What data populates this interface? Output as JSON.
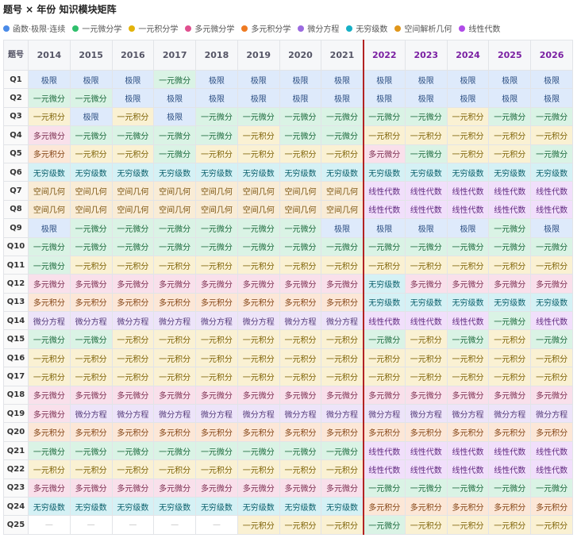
{
  "title": "题号 × 年份 知识模块矩阵",
  "legend": [
    {
      "label": "函数·极限·连续",
      "color": "#4a8be8"
    },
    {
      "label": "一元微分学",
      "color": "#2fbf6c"
    },
    {
      "label": "一元积分学",
      "color": "#e3b30a"
    },
    {
      "label": "多元微分学",
      "color": "#e0508f"
    },
    {
      "label": "多元积分学",
      "color": "#ee7a22"
    },
    {
      "label": "微分方程",
      "color": "#9b6be0"
    },
    {
      "label": "无穷级数",
      "color": "#16b0c6"
    },
    {
      "label": "空间解析几何",
      "color": "#e0961a"
    },
    {
      "label": "线性代数",
      "color": "#b04be8"
    }
  ],
  "table": {
    "corner": "题号",
    "past_years": [
      2014,
      2015,
      2016,
      2017,
      2018,
      2019,
      2020,
      2021
    ],
    "future_years": [
      2022,
      2023,
      2024,
      2025,
      2026
    ],
    "rows": [
      {
        "label": "Q1",
        "past": [
          "极限",
          "极限",
          "极限",
          "一元微分",
          "极限",
          "极限",
          "极限",
          "极限"
        ],
        "future": [
          "极限",
          "极限",
          "极限",
          "极限",
          "极限"
        ]
      },
      {
        "label": "Q2",
        "past": [
          "一元微分",
          "一元微分",
          "极限",
          "极限",
          "极限",
          "极限",
          "极限",
          "极限"
        ],
        "future": [
          "极限",
          "极限",
          "极限",
          "极限",
          "极限"
        ]
      },
      {
        "label": "Q3",
        "past": [
          "一元积分",
          "极限",
          "一元积分",
          "极限",
          "一元微分",
          "一元微分",
          "一元微分",
          "一元微分"
        ],
        "future": [
          "一元微分",
          "一元微分",
          "一元积分",
          "一元微分",
          "一元微分"
        ]
      },
      {
        "label": "Q4",
        "past": [
          "多元微分",
          "一元微分",
          "一元微分",
          "一元微分",
          "一元微分",
          "一元积分",
          "一元微分",
          "一元微分"
        ],
        "future": [
          "一元积分",
          "一元积分",
          "一元积分",
          "一元积分",
          "一元积分"
        ]
      },
      {
        "label": "Q5",
        "past": [
          "多元积分",
          "一元积分",
          "一元积分",
          "一元微分",
          "一元积分",
          "一元积分",
          "一元积分",
          "一元积分"
        ],
        "future": [
          "多元微分",
          "一元微分",
          "一元积分",
          "一元积分",
          "一元微分"
        ]
      },
      {
        "label": "Q6",
        "past": [
          "无穷级数",
          "无穷级数",
          "无穷级数",
          "无穷级数",
          "无穷级数",
          "无穷级数",
          "无穷级数",
          "无穷级数"
        ],
        "future": [
          "无穷级数",
          "无穷级数",
          "无穷级数",
          "无穷级数",
          "无穷级数"
        ]
      },
      {
        "label": "Q7",
        "past": [
          "空间几何",
          "空间几何",
          "空间几何",
          "空间几何",
          "空间几何",
          "空间几何",
          "空间几何",
          "空间几何"
        ],
        "future": [
          "线性代数",
          "线性代数",
          "线性代数",
          "线性代数",
          "线性代数"
        ]
      },
      {
        "label": "Q8",
        "past": [
          "空间几何",
          "空间几何",
          "空间几何",
          "空间几何",
          "空间几何",
          "空间几何",
          "空间几何",
          "空间几何"
        ],
        "future": [
          "线性代数",
          "线性代数",
          "线性代数",
          "线性代数",
          "线性代数"
        ]
      },
      {
        "label": "Q9",
        "past": [
          "极限",
          "一元微分",
          "一元微分",
          "一元微分",
          "一元微分",
          "一元微分",
          "一元微分",
          "极限"
        ],
        "future": [
          "极限",
          "极限",
          "极限",
          "一元微分",
          "极限"
        ]
      },
      {
        "label": "Q10",
        "past": [
          "一元微分",
          "一元微分",
          "一元微分",
          "一元微分",
          "一元微分",
          "一元微分",
          "一元微分",
          "一元微分"
        ],
        "future": [
          "一元微分",
          "一元微分",
          "一元微分",
          "一元微分",
          "一元微分"
        ]
      },
      {
        "label": "Q11",
        "past": [
          "一元微分",
          "一元积分",
          "一元积分",
          "一元积分",
          "一元积分",
          "一元积分",
          "一元积分",
          "一元积分"
        ],
        "future": [
          "一元积分",
          "一元积分",
          "一元积分",
          "一元积分",
          "一元积分"
        ]
      },
      {
        "label": "Q12",
        "past": [
          "多元微分",
          "多元微分",
          "多元微分",
          "多元微分",
          "多元微分",
          "多元微分",
          "多元微分",
          "多元微分"
        ],
        "future": [
          "无穷级数",
          "多元微分",
          "多元微分",
          "多元微分",
          "多元微分"
        ]
      },
      {
        "label": "Q13",
        "past": [
          "多元积分",
          "多元积分",
          "多元积分",
          "多元积分",
          "多元积分",
          "多元积分",
          "多元积分",
          "多元积分"
        ],
        "future": [
          "无穷级数",
          "无穷级数",
          "无穷级数",
          "无穷级数",
          "无穷级数"
        ]
      },
      {
        "label": "Q14",
        "past": [
          "微分方程",
          "微分方程",
          "微分方程",
          "微分方程",
          "微分方程",
          "微分方程",
          "微分方程",
          "微分方程"
        ],
        "future": [
          "线性代数",
          "线性代数",
          "线性代数",
          "一元微分",
          "线性代数"
        ]
      },
      {
        "label": "Q15",
        "past": [
          "一元微分",
          "一元微分",
          "一元积分",
          "一元积分",
          "一元积分",
          "一元积分",
          "一元积分",
          "一元积分"
        ],
        "future": [
          "一元微分",
          "一元积分",
          "一元微分",
          "一元积分",
          "一元微分"
        ]
      },
      {
        "label": "Q16",
        "past": [
          "一元积分",
          "一元积分",
          "一元积分",
          "一元积分",
          "一元积分",
          "一元积分",
          "一元积分",
          "一元积分"
        ],
        "future": [
          "一元积分",
          "一元积分",
          "一元积分",
          "一元积分",
          "一元积分"
        ]
      },
      {
        "label": "Q17",
        "past": [
          "一元积分",
          "一元积分",
          "一元积分",
          "一元积分",
          "一元积分",
          "一元积分",
          "一元积分",
          "一元积分"
        ],
        "future": [
          "一元积分",
          "一元积分",
          "一元积分",
          "一元积分",
          "一元积分"
        ]
      },
      {
        "label": "Q18",
        "past": [
          "多元微分",
          "多元微分",
          "多元微分",
          "多元微分",
          "多元微分",
          "多元微分",
          "多元微分",
          "多元微分"
        ],
        "future": [
          "多元微分",
          "多元微分",
          "多元微分",
          "多元微分",
          "多元微分"
        ]
      },
      {
        "label": "Q19",
        "past": [
          "多元微分",
          "微分方程",
          "微分方程",
          "微分方程",
          "微分方程",
          "微分方程",
          "微分方程",
          "微分方程"
        ],
        "future": [
          "微分方程",
          "微分方程",
          "微分方程",
          "微分方程",
          "微分方程"
        ]
      },
      {
        "label": "Q20",
        "past": [
          "多元积分",
          "多元积分",
          "多元积分",
          "多元积分",
          "多元积分",
          "多元积分",
          "多元积分",
          "多元积分"
        ],
        "future": [
          "多元积分",
          "多元积分",
          "多元积分",
          "多元积分",
          "多元积分"
        ]
      },
      {
        "label": "Q21",
        "past": [
          "一元微分",
          "一元微分",
          "一元微分",
          "一元微分",
          "一元微分",
          "一元微分",
          "一元微分",
          "一元微分"
        ],
        "future": [
          "线性代数",
          "线性代数",
          "线性代数",
          "线性代数",
          "线性代数"
        ]
      },
      {
        "label": "Q22",
        "past": [
          "一元积分",
          "一元积分",
          "一元积分",
          "一元积分",
          "一元积分",
          "一元积分",
          "一元积分",
          "一元积分"
        ],
        "future": [
          "线性代数",
          "线性代数",
          "线性代数",
          "线性代数",
          "线性代数"
        ]
      },
      {
        "label": "Q23",
        "past": [
          "多元微分",
          "多元微分",
          "多元微分",
          "多元微分",
          "多元微分",
          "多元微分",
          "多元微分",
          "多元微分"
        ],
        "future": [
          "一元微分",
          "一元微分",
          "一元微分",
          "一元微分",
          "一元微分"
        ]
      },
      {
        "label": "Q24",
        "past": [
          "无穷级数",
          "无穷级数",
          "无穷级数",
          "无穷级数",
          "无穷级数",
          "无穷级数",
          "无穷级数",
          "无穷级数"
        ],
        "future": [
          "多元积分",
          "多元积分",
          "多元积分",
          "多元积分",
          "多元积分"
        ]
      },
      {
        "label": "Q25",
        "past": [
          "—",
          "—",
          "—",
          "—",
          "—",
          "一元积分",
          "一元积分",
          "一元积分"
        ],
        "future": [
          "一元微分",
          "一元积分",
          "一元积分",
          "一元积分",
          "一元积分"
        ]
      }
    ]
  }
}
